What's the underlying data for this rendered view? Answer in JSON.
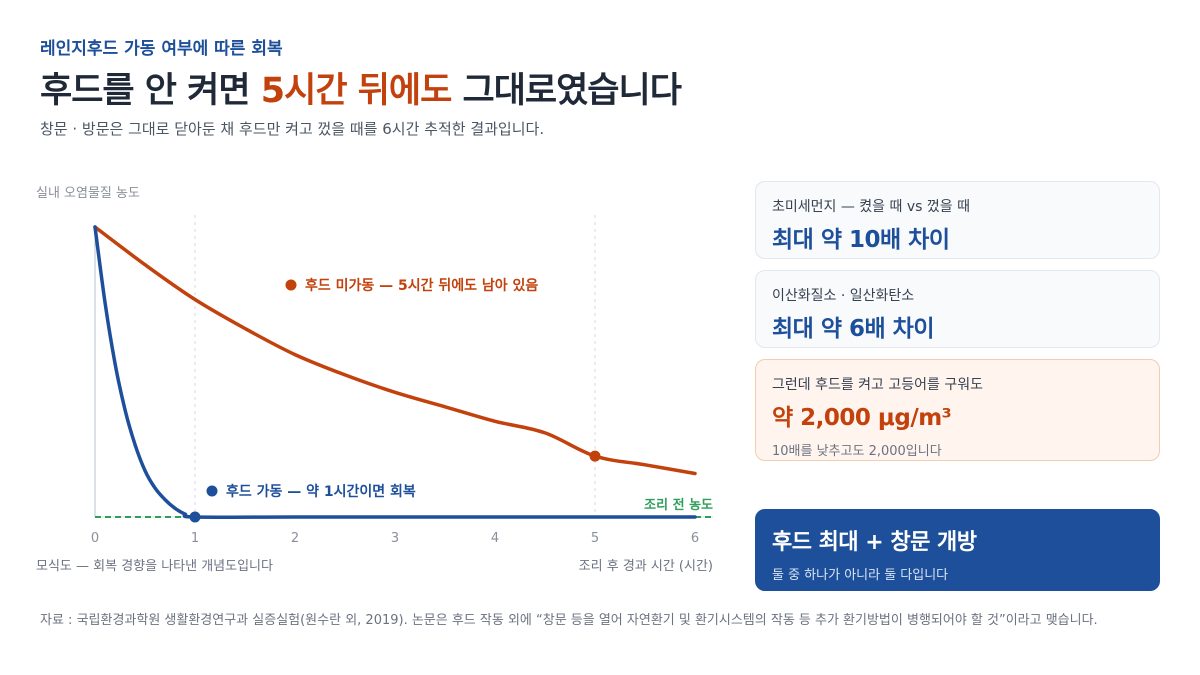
{
  "header": {
    "eyebrow": "레인지후드 가동 여부에 따른 회복",
    "headline_before": "후드를 안 켜면 ",
    "headline_accent": "5시간 뒤에도",
    "headline_after": " 그대로였습니다",
    "subtitle": "창문 · 방문은 그대로 닫아둔 채 후드만 켜고 껐을 때를 6시간 추적한 결과입니다."
  },
  "colors": {
    "blue": "#1d4f9a",
    "orange": "#c2410c",
    "green": "#2f9e5b"
  },
  "chart_data": {
    "type": "line",
    "ylabel": "실내 오염물질 농도",
    "xlabel": "조리 후 경과 시간 (시간)",
    "footnote": "모식도 — 회복 경향을 나타낸 개념도입니다",
    "x_ticks": [
      "0",
      "1",
      "2",
      "3",
      "4",
      "5",
      "6"
    ],
    "xlim": [
      0,
      6
    ],
    "ylim": [
      0,
      1
    ],
    "baseline_label": "조리 전 농도",
    "series": [
      {
        "name": "후드 미가동 — 5시간 뒤에도 남아 있음",
        "color": "#c2410c",
        "x": [
          0,
          0.5,
          1,
          1.5,
          2,
          2.5,
          3,
          3.5,
          4,
          4.5,
          5,
          5.5,
          6
        ],
        "y": [
          1.0,
          0.87,
          0.75,
          0.65,
          0.56,
          0.49,
          0.43,
          0.38,
          0.33,
          0.29,
          0.21,
          0.18,
          0.15
        ],
        "marker_x": 5,
        "marker_y": 0.21
      },
      {
        "name": "후드 가동 — 약 1시간이면 회복",
        "color": "#1d4f9a",
        "x": [
          0,
          0.1,
          0.2,
          0.3,
          0.4,
          0.5,
          0.6,
          0.7,
          0.8,
          0.9,
          1,
          2,
          3,
          4,
          5,
          6
        ],
        "y": [
          1.0,
          0.74,
          0.53,
          0.37,
          0.25,
          0.16,
          0.1,
          0.06,
          0.03,
          0.01,
          0.0,
          0.0,
          0.0,
          0.0,
          0.0,
          0.0
        ],
        "marker_x": 1,
        "marker_y": 0.0
      }
    ]
  },
  "cards": [
    {
      "label": "초미세먼지 — 켰을 때 vs 껐을 때",
      "value": "최대 약 10배 차이"
    },
    {
      "label": "이산화질소 · 일산화탄소",
      "value": "최대 약 6배 차이"
    },
    {
      "label": "그런데 후드를 켜고 고등어를 구워도",
      "value": "약 2,000 μg/m³",
      "note": "10배를 낮추고도 2,000입니다"
    },
    {
      "value": "후드 최대 + 창문 개방",
      "note": "둘 중 하나가 아니라 둘 다입니다"
    }
  ],
  "source": "자료 : 국립환경과학원 생활환경연구과 실증실험(원수란 외, 2019). 논문은 후드 작동 외에 “창문 등을 열어 자연환기 및 환기시스템의 작동 등 추가 환기방법이 병행되어야 할 것”이라고 맺습니다."
}
